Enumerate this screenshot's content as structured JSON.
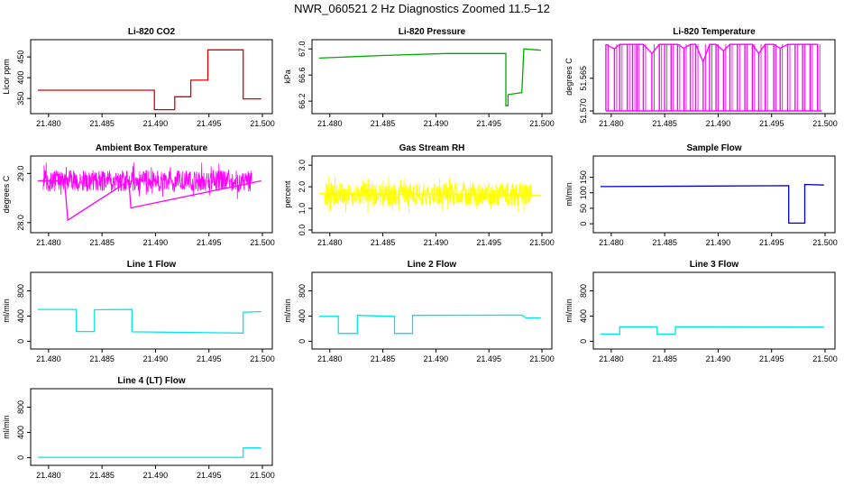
{
  "title": "NWR_060521  2 Hz Diagnostics Zoomed 11.5–12",
  "colors": {
    "red": "#dd0000",
    "green": "#00aa00",
    "magenta": "#ff00ff",
    "yellow": "#ffff00",
    "blue": "#0000cc",
    "cyan": "#00e5e5"
  },
  "chart_data": [
    {
      "type": "line",
      "title": "Li-820 CO2",
      "ylabel": "Licor ppm",
      "color": "red",
      "xlim": [
        21.479,
        21.5
      ],
      "ylim": [
        320,
        485
      ],
      "xticks": [
        "21.480",
        "21.485",
        "21.490",
        "21.495",
        "21.500"
      ],
      "yticks": [
        {
          "v": 350,
          "label": "350"
        },
        {
          "v": 400,
          "label": "400"
        },
        {
          "v": 450,
          "label": "450"
        }
      ],
      "series": [
        {
          "x": [
            21.479,
            21.4899,
            21.4899,
            21.4918,
            21.4918,
            21.4933,
            21.4933,
            21.4949,
            21.4949,
            21.4982,
            21.4982,
            21.4999
          ],
          "y": [
            370,
            370,
            323,
            323,
            354,
            354,
            394,
            394,
            467,
            467,
            349,
            349
          ]
        }
      ]
    },
    {
      "type": "line",
      "title": "Li-820 Pressure",
      "ylabel": "kPa",
      "color": "green",
      "xlim": [
        21.479,
        21.5
      ],
      "ylim": [
        66.05,
        67.1
      ],
      "xticks": [
        "21.480",
        "21.485",
        "21.490",
        "21.495",
        "21.500"
      ],
      "yticks": [
        {
          "v": 66.2,
          "label": "66.2"
        },
        {
          "v": 66.6,
          "label": "66.6"
        },
        {
          "v": 67.0,
          "label": "67.0"
        }
      ],
      "series": [
        {
          "x": [
            21.479,
            21.485,
            21.491,
            21.4966,
            21.4966,
            21.4968,
            21.4968,
            21.4981,
            21.4983,
            21.4999
          ],
          "y": [
            66.86,
            66.9,
            66.93,
            66.93,
            66.13,
            66.13,
            66.3,
            66.33,
            67.0,
            66.98
          ]
        }
      ]
    },
    {
      "type": "line",
      "title": "Li-820 Temperature",
      "ylabel": "degrees C",
      "color": "magenta",
      "xlim": [
        21.479,
        21.5
      ],
      "ylim": [
        51.57,
        51.5595
      ],
      "xticks": [
        "21.480",
        "21.485",
        "21.490",
        "21.495",
        "21.500"
      ],
      "yticks": [
        {
          "v": 51.57,
          "label": "51.570"
        },
        {
          "v": 51.565,
          "label": "51.565"
        }
      ],
      "series": [
        {
          "x": [
            21.4795,
            21.4803,
            21.4808,
            21.4815,
            21.482,
            21.4824,
            21.483,
            21.4838,
            21.4845,
            21.485,
            21.4856,
            21.4862,
            21.4868,
            21.4874,
            21.4879,
            21.4886,
            21.4892,
            21.4898,
            21.4905,
            21.4911,
            21.4918,
            21.4925,
            21.4932,
            21.4938,
            21.4944,
            21.4952,
            21.4958,
            21.4965,
            21.4972,
            21.4979,
            21.4986,
            21.4993
          ],
          "y": [
            51.5598,
            51.5605,
            51.5598,
            51.5598,
            51.5598,
            51.5598,
            51.5598,
            51.5612,
            51.5598,
            51.5598,
            51.5598,
            51.5598,
            51.5604,
            51.5598,
            51.5598,
            51.5625,
            51.5598,
            51.5598,
            51.5608,
            51.5598,
            51.5598,
            51.5598,
            51.5598,
            51.5612,
            51.5598,
            51.5598,
            51.5604,
            51.5598,
            51.5598,
            51.5598,
            51.5598,
            51.5598
          ]
        }
      ]
    },
    {
      "type": "line",
      "title": "Ambient Box Temperature",
      "ylabel": "degrees C",
      "color": "magenta",
      "xlim": [
        21.479,
        21.5
      ],
      "ylim": [
        27.85,
        29.3
      ],
      "xticks": [
        "21.480",
        "21.485",
        "21.490",
        "21.495",
        "21.500"
      ],
      "yticks": [
        {
          "v": 28.0,
          "label": "28.0"
        },
        {
          "v": 29.0,
          "label": "29.0"
        }
      ],
      "series": [
        {
          "x": [
            21.479,
            21.4815,
            21.4818,
            21.4875,
            21.4877,
            21.4999
          ],
          "y": [
            28.85,
            28.85,
            28.05,
            28.85,
            28.3,
            28.85
          ]
        }
      ]
    },
    {
      "type": "line",
      "title": "Gas Stream RH",
      "ylabel": "percent",
      "color": "yellow",
      "xlim": [
        21.479,
        21.5
      ],
      "ylim": [
        0.0,
        3.3
      ],
      "xticks": [
        "21.480",
        "21.485",
        "21.490",
        "21.495",
        "21.500"
      ],
      "yticks": [
        {
          "v": 0.0,
          "label": "0.0"
        },
        {
          "v": 1.0,
          "label": "1.0"
        },
        {
          "v": 2.0,
          "label": "2.0"
        },
        {
          "v": 3.0,
          "label": "3.0"
        }
      ],
      "series": [
        {
          "x": [
            21.479,
            21.4999
          ],
          "y": [
            1.7,
            1.6
          ]
        }
      ]
    },
    {
      "type": "line",
      "title": "Sample Flow",
      "ylabel": "ml/min",
      "color": "blue",
      "xlim": [
        21.479,
        21.5
      ],
      "ylim": [
        -20,
        210
      ],
      "xticks": [
        "21.480",
        "21.485",
        "21.490",
        "21.495",
        "21.500"
      ],
      "yticks": [
        {
          "v": 0,
          "label": "0"
        },
        {
          "v": 50,
          "label": "50"
        },
        {
          "v": 100,
          "label": "100"
        },
        {
          "v": 150,
          "label": "150"
        }
      ],
      "series": [
        {
          "x": [
            21.479,
            21.4966,
            21.4966,
            21.4981,
            21.4981,
            21.4999
          ],
          "y": [
            120,
            123,
            2,
            2,
            127,
            125
          ]
        }
      ]
    },
    {
      "type": "line",
      "title": "Line 1 Flow",
      "ylabel": "ml/min",
      "color": "cyan",
      "xlim": [
        21.479,
        21.5
      ],
      "ylim": [
        -80,
        1050
      ],
      "xticks": [
        "21.480",
        "21.485",
        "21.490",
        "21.495",
        "21.500"
      ],
      "yticks": [
        {
          "v": 0,
          "label": "0"
        },
        {
          "v": 400,
          "label": "400"
        },
        {
          "v": 800,
          "label": "800"
        }
      ],
      "series": [
        {
          "x": [
            21.479,
            21.4826,
            21.4826,
            21.4843,
            21.4843,
            21.4878,
            21.4878,
            21.4982,
            21.4982,
            21.4999
          ],
          "y": [
            505,
            505,
            155,
            155,
            500,
            505,
            150,
            130,
            460,
            470
          ]
        }
      ]
    },
    {
      "type": "line",
      "title": "Line 2 Flow",
      "ylabel": "ml/min",
      "color": "cyan",
      "xlim": [
        21.479,
        21.5
      ],
      "ylim": [
        -80,
        1050
      ],
      "xticks": [
        "21.480",
        "21.485",
        "21.490",
        "21.495",
        "21.500"
      ],
      "yticks": [
        {
          "v": 0,
          "label": "0"
        },
        {
          "v": 400,
          "label": "400"
        },
        {
          "v": 800,
          "label": "800"
        }
      ],
      "series": [
        {
          "x": [
            21.479,
            21.4808,
            21.4808,
            21.4826,
            21.4826,
            21.4861,
            21.4861,
            21.4878,
            21.4878,
            21.4981,
            21.4985,
            21.4999
          ],
          "y": [
            395,
            395,
            125,
            125,
            410,
            395,
            125,
            125,
            410,
            415,
            370,
            370
          ]
        }
      ]
    },
    {
      "type": "line",
      "title": "Line 3 Flow",
      "ylabel": "ml/min",
      "color": "cyan",
      "xlim": [
        21.479,
        21.5
      ],
      "ylim": [
        -80,
        1050
      ],
      "xticks": [
        "21.480",
        "21.485",
        "21.490",
        "21.495",
        "21.500"
      ],
      "yticks": [
        {
          "v": 0,
          "label": "0"
        },
        {
          "v": 400,
          "label": "400"
        },
        {
          "v": 800,
          "label": "800"
        }
      ],
      "series": [
        {
          "x": [
            21.479,
            21.4808,
            21.4808,
            21.4843,
            21.4843,
            21.486,
            21.486,
            21.4999
          ],
          "y": [
            115,
            115,
            230,
            230,
            115,
            115,
            230,
            225
          ]
        }
      ]
    },
    {
      "type": "line",
      "title": "Line 4 (LT) Flow",
      "ylabel": "ml/min",
      "color": "cyan",
      "xlim": [
        21.479,
        21.5
      ],
      "ylim": [
        -80,
        1050
      ],
      "xticks": [
        "21.480",
        "21.485",
        "21.490",
        "21.495",
        "21.500"
      ],
      "yticks": [
        {
          "v": 0,
          "label": "0"
        },
        {
          "v": 400,
          "label": "400"
        },
        {
          "v": 800,
          "label": "800"
        }
      ],
      "series": [
        {
          "x": [
            21.479,
            21.4982,
            21.4982,
            21.4999
          ],
          "y": [
            5,
            5,
            155,
            155
          ]
        }
      ]
    }
  ]
}
